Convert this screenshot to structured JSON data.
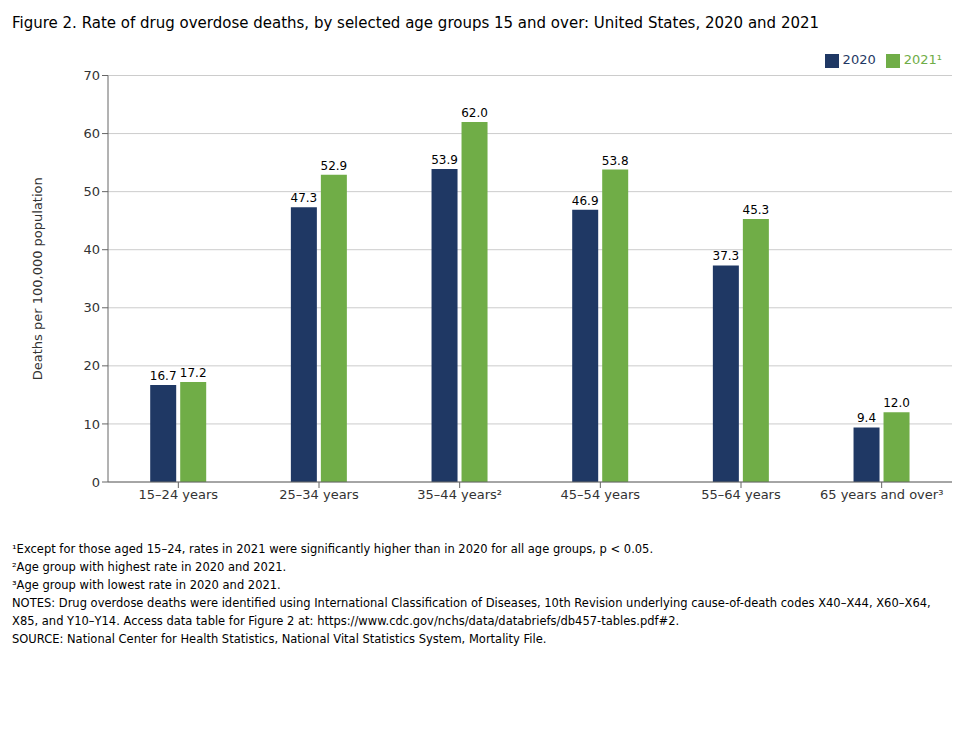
{
  "chart_data": {
    "type": "bar",
    "title": "Figure 2. Rate of drug overdose deaths, by selected age groups 15 and over: United States, 2020 and 2021",
    "categories": [
      "15–24 years",
      "25–34 years",
      "35–44 years²",
      "45–54 years",
      "55–64 years",
      "65 years and over³"
    ],
    "series": [
      {
        "name": "2020",
        "color": "#1f3864",
        "values": [
          16.7,
          47.3,
          53.9,
          46.9,
          37.3,
          9.4
        ]
      },
      {
        "name": "2021¹",
        "color": "#70ad47",
        "values": [
          17.2,
          52.9,
          62.0,
          53.8,
          45.3,
          12.0
        ],
        "value_labels": [
          "17.2",
          "52.9",
          "62.0",
          "53.8",
          "45.3",
          "12.0"
        ]
      }
    ],
    "ylabel": "Deaths per 100,000 population",
    "ylim": [
      0,
      70
    ],
    "yticks": [
      0,
      10,
      20,
      30,
      40,
      50,
      60,
      70
    ],
    "grid": true,
    "legend": "upper right",
    "data_labels": true,
    "annotations": [
      "¹Except for those aged 15–24, rates in 2021 were significantly higher than in 2020 for all age groups, p < 0.05.",
      "²Age group with highest rate in 2020 and 2021.",
      "³Age group with lowest rate in 2020 and 2021.",
      "NOTES: Drug overdose deaths were identified using International Classification of Diseases, 10th Revision underlying cause-of-death codes X40–X44, X60–X64,",
      "X85, and Y10–Y14. Access data table for Figure 2 at: https://www.cdc.gov/nchs/data/databriefs/db457-tables.pdf#2.",
      "SOURCE: National Center for Health Statistics, National Vital Statistics System, Mortality File."
    ]
  }
}
